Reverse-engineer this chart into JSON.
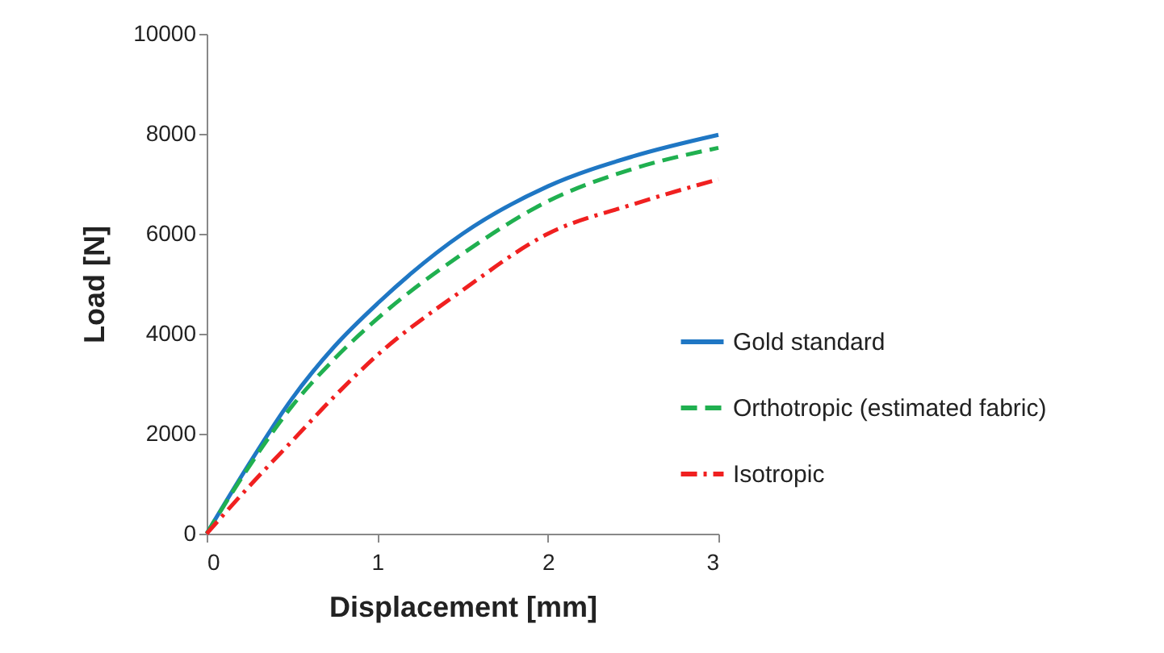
{
  "chart_data": {
    "type": "line",
    "xlabel": "Displacement [mm]",
    "ylabel": "Load [N]",
    "x": [
      0,
      0.25,
      0.5,
      0.75,
      1,
      1.5,
      2,
      2.5,
      3
    ],
    "series": [
      {
        "name": "Gold standard",
        "color": "#1f77c4",
        "line_style": "solid",
        "values": [
          0,
          1400,
          2700,
          3750,
          4600,
          6000,
          6950,
          7550,
          7980
        ]
      },
      {
        "name": "Orthotropic (estimated fabric)",
        "color": "#20b050",
        "line_style": "dashed",
        "values": [
          0,
          1350,
          2550,
          3500,
          4300,
          5600,
          6650,
          7300,
          7720
        ]
      },
      {
        "name": "Isotropic",
        "color": "#f02020",
        "line_style": "dashdot",
        "values": [
          0,
          950,
          1850,
          2750,
          3570,
          4870,
          6000,
          6590,
          7090
        ]
      }
    ],
    "xlim": [
      0,
      3
    ],
    "xticks": [
      0,
      1,
      2,
      3
    ],
    "ylim": [
      0,
      10000
    ],
    "yticks": [
      0,
      2000,
      4000,
      6000,
      8000,
      10000
    ],
    "grid": false,
    "legend": "right"
  }
}
